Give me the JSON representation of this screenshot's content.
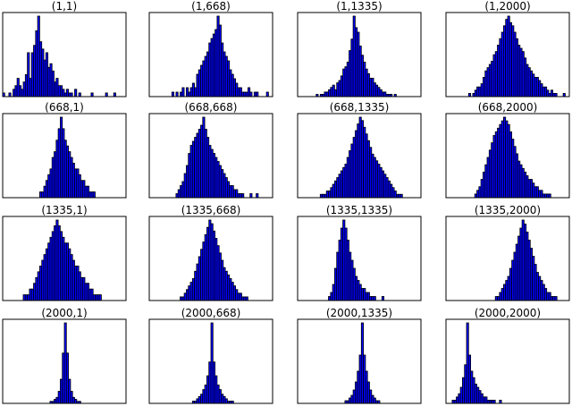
{
  "chart_data": {
    "type": "bar",
    "layout": "grid",
    "rows": 4,
    "cols": 4,
    "bins": 60,
    "bar_color": "#0000ff",
    "edge_color": "#000000",
    "axes_ticks": "none",
    "panels": [
      {
        "title": "(1,1)",
        "counts": [
          1,
          0,
          0,
          1,
          0,
          2,
          3,
          5,
          3,
          2,
          4,
          6,
          12,
          5,
          12,
          14,
          18,
          22,
          15,
          13,
          10,
          12,
          8,
          9,
          7,
          4,
          5,
          3,
          3,
          2,
          1,
          2,
          1,
          1,
          0,
          2,
          0,
          1,
          0,
          0,
          0,
          0,
          0,
          1,
          0,
          0,
          0,
          0,
          0,
          0,
          1,
          0,
          0,
          0,
          1,
          0,
          0,
          0,
          0,
          0
        ]
      },
      {
        "title": "(1,668)",
        "counts": [
          0,
          0,
          0,
          0,
          0,
          0,
          0,
          0,
          0,
          0,
          0,
          1,
          0,
          1,
          0,
          1,
          2,
          0,
          2,
          1,
          2,
          3,
          2,
          5,
          6,
          7,
          8,
          9,
          10,
          12,
          13,
          14,
          15,
          18,
          16,
          12,
          10,
          9,
          8,
          6,
          5,
          4,
          3,
          2,
          2,
          1,
          1,
          1,
          2,
          1,
          0,
          1,
          1,
          0,
          0,
          0,
          0,
          1,
          0,
          0
        ]
      },
      {
        "title": "(1,1335)",
        "counts": [
          0,
          0,
          0,
          0,
          0,
          0,
          0,
          0,
          0,
          1,
          0,
          1,
          1,
          2,
          2,
          3,
          4,
          5,
          3,
          6,
          7,
          9,
          12,
          13,
          15,
          20,
          25,
          35,
          30,
          28,
          22,
          18,
          15,
          12,
          10,
          8,
          8,
          6,
          5,
          4,
          3,
          2,
          2,
          1,
          1,
          1,
          0,
          1,
          0,
          0,
          0,
          0,
          0,
          0,
          0,
          0,
          0,
          0,
          0,
          0
        ]
      },
      {
        "title": "(1,2000)",
        "counts": [
          0,
          0,
          0,
          0,
          0,
          0,
          0,
          0,
          0,
          0,
          0,
          1,
          0,
          1,
          2,
          3,
          3,
          4,
          6,
          8,
          9,
          10,
          11,
          13,
          14,
          16,
          18,
          20,
          22,
          24,
          25,
          23,
          22,
          20,
          18,
          16,
          15,
          14,
          12,
          10,
          9,
          8,
          7,
          6,
          6,
          5,
          4,
          3,
          3,
          2,
          1,
          2,
          1,
          1,
          0,
          0,
          0,
          1,
          0,
          0
        ]
      },
      {
        "title": "(668,1)",
        "counts": [
          0,
          0,
          0,
          0,
          0,
          0,
          0,
          0,
          0,
          0,
          0,
          0,
          0,
          0,
          0,
          0,
          0,
          0,
          1,
          1,
          2,
          3,
          4,
          5,
          7,
          8,
          10,
          12,
          14,
          12,
          10,
          9,
          8,
          7,
          6,
          5,
          5,
          4,
          3,
          3,
          2,
          2,
          1,
          1,
          1,
          0,
          0,
          0,
          0,
          0,
          0,
          0,
          0,
          0,
          0,
          0,
          0,
          0,
          0,
          0
        ]
      },
      {
        "title": "(668,668)",
        "counts": [
          0,
          0,
          0,
          0,
          0,
          0,
          0,
          0,
          0,
          0,
          0,
          0,
          0,
          1,
          2,
          3,
          4,
          6,
          8,
          11,
          13,
          14,
          15,
          16,
          17,
          18,
          20,
          17,
          15,
          13,
          12,
          11,
          10,
          9,
          8,
          7,
          6,
          5,
          4,
          3,
          3,
          2,
          2,
          1,
          1,
          1,
          0,
          0,
          0,
          1,
          0,
          0,
          1,
          0,
          0,
          0,
          0,
          0,
          0,
          0
        ]
      },
      {
        "title": "(668,1335)",
        "counts": [
          0,
          0,
          0,
          0,
          0,
          0,
          0,
          0,
          0,
          0,
          0,
          1,
          1,
          1,
          2,
          2,
          3,
          4,
          5,
          6,
          7,
          8,
          9,
          10,
          12,
          14,
          16,
          18,
          20,
          22,
          24,
          23,
          21,
          19,
          17,
          15,
          13,
          12,
          11,
          10,
          9,
          8,
          7,
          6,
          5,
          4,
          3,
          2,
          1,
          1,
          1,
          0,
          0,
          0,
          0,
          0,
          0,
          0,
          0,
          0
        ]
      },
      {
        "title": "(668,2000)",
        "counts": [
          0,
          0,
          0,
          0,
          0,
          0,
          0,
          0,
          0,
          0,
          0,
          0,
          0,
          0,
          1,
          2,
          3,
          5,
          7,
          9,
          11,
          13,
          15,
          17,
          18,
          19,
          20,
          21,
          22,
          21,
          20,
          18,
          16,
          14,
          12,
          10,
          9,
          8,
          7,
          6,
          5,
          5,
          4,
          3,
          3,
          2,
          2,
          1,
          1,
          1,
          1,
          0,
          0,
          0,
          0,
          0,
          0,
          0,
          0,
          0
        ]
      },
      {
        "title": "(1335,1)",
        "counts": [
          0,
          0,
          0,
          0,
          0,
          0,
          0,
          0,
          0,
          0,
          1,
          1,
          1,
          2,
          2,
          3,
          4,
          5,
          6,
          7,
          8,
          9,
          10,
          11,
          12,
          13,
          14,
          13,
          12,
          11,
          10,
          10,
          9,
          8,
          7,
          6,
          6,
          5,
          4,
          4,
          3,
          3,
          2,
          2,
          1,
          1,
          1,
          1,
          0,
          0,
          0,
          0,
          0,
          0,
          0,
          0,
          0,
          0,
          0,
          0
        ]
      },
      {
        "title": "(1335,668)",
        "counts": [
          0,
          0,
          0,
          0,
          0,
          0,
          0,
          0,
          0,
          0,
          0,
          0,
          0,
          0,
          0,
          1,
          1,
          2,
          3,
          4,
          5,
          6,
          8,
          10,
          12,
          14,
          16,
          18,
          20,
          22,
          21,
          19,
          17,
          15,
          13,
          11,
          9,
          8,
          7,
          6,
          5,
          4,
          3,
          2,
          2,
          1,
          1,
          1,
          0,
          0,
          0,
          0,
          0,
          0,
          0,
          0,
          0,
          0,
          0,
          0
        ]
      },
      {
        "title": "(1335,1335)",
        "counts": [
          0,
          0,
          0,
          0,
          0,
          0,
          0,
          0,
          0,
          0,
          0,
          0,
          0,
          0,
          0,
          1,
          2,
          4,
          8,
          12,
          15,
          18,
          20,
          18,
          15,
          12,
          10,
          8,
          6,
          5,
          4,
          3,
          3,
          2,
          2,
          1,
          1,
          1,
          0,
          0,
          0,
          1,
          0,
          0,
          0,
          0,
          0,
          0,
          0,
          0,
          0,
          0,
          0,
          0,
          0,
          0,
          0,
          0,
          0,
          0
        ]
      },
      {
        "title": "(1335,2000)",
        "counts": [
          0,
          0,
          0,
          0,
          0,
          0,
          0,
          0,
          0,
          0,
          0,
          0,
          0,
          0,
          0,
          0,
          0,
          0,
          0,
          0,
          0,
          0,
          0,
          0,
          1,
          1,
          2,
          3,
          4,
          5,
          6,
          8,
          10,
          12,
          14,
          16,
          18,
          20,
          19,
          17,
          15,
          13,
          11,
          9,
          7,
          6,
          5,
          4,
          3,
          2,
          2,
          1,
          1,
          1,
          0,
          0,
          0,
          0,
          0,
          0
        ]
      },
      {
        "title": "(2000,1)",
        "counts": [
          0,
          0,
          0,
          0,
          0,
          0,
          0,
          0,
          0,
          0,
          0,
          0,
          0,
          0,
          0,
          0,
          0,
          0,
          0,
          0,
          0,
          0,
          0,
          1,
          1,
          2,
          3,
          6,
          12,
          25,
          40,
          25,
          12,
          6,
          3,
          2,
          1,
          1,
          0,
          0,
          0,
          0,
          0,
          0,
          0,
          0,
          0,
          0,
          0,
          0,
          0,
          0,
          0,
          0,
          0,
          0,
          0,
          0,
          0,
          0
        ]
      },
      {
        "title": "(2000,668)",
        "counts": [
          0,
          0,
          0,
          0,
          0,
          0,
          0,
          0,
          0,
          0,
          0,
          0,
          0,
          0,
          0,
          0,
          0,
          0,
          0,
          0,
          0,
          1,
          1,
          2,
          3,
          4,
          6,
          8,
          12,
          18,
          35,
          18,
          12,
          8,
          6,
          4,
          3,
          2,
          1,
          1,
          1,
          0,
          0,
          0,
          0,
          0,
          0,
          0,
          0,
          0,
          0,
          0,
          0,
          0,
          0,
          0,
          0,
          0,
          0,
          0
        ]
      },
      {
        "title": "(2000,1335)",
        "counts": [
          0,
          0,
          0,
          0,
          0,
          0,
          0,
          0,
          0,
          0,
          0,
          0,
          0,
          0,
          0,
          0,
          0,
          0,
          0,
          0,
          0,
          0,
          0,
          1,
          1,
          2,
          3,
          5,
          8,
          12,
          18,
          30,
          18,
          12,
          8,
          5,
          3,
          2,
          1,
          1,
          0,
          0,
          0,
          0,
          0,
          0,
          0,
          0,
          0,
          0,
          0,
          0,
          0,
          0,
          0,
          0,
          0,
          0,
          0,
          0
        ]
      },
      {
        "title": "(2000,2000)",
        "counts": [
          0,
          0,
          0,
          1,
          1,
          2,
          3,
          5,
          8,
          12,
          25,
          15,
          10,
          8,
          6,
          5,
          4,
          3,
          2,
          2,
          1,
          1,
          1,
          1,
          0,
          0,
          1,
          0,
          0,
          0,
          0,
          0,
          0,
          0,
          0,
          0,
          0,
          0,
          0,
          0,
          0,
          0,
          0,
          0,
          0,
          0,
          0,
          0,
          0,
          0,
          0,
          0,
          0,
          0,
          0,
          0,
          0,
          0,
          0,
          0
        ]
      }
    ]
  }
}
